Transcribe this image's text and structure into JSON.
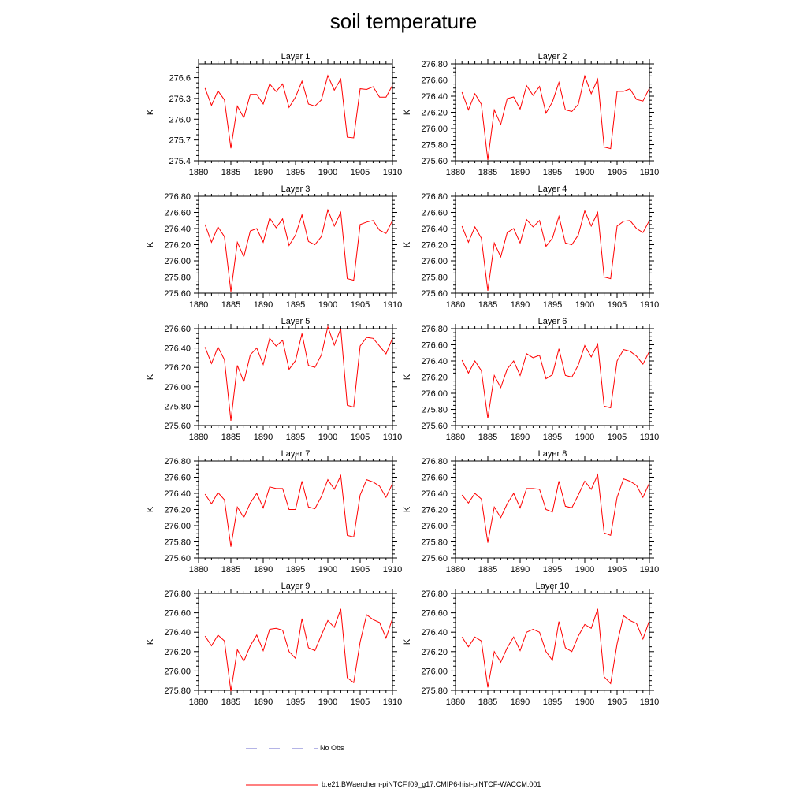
{
  "figure": {
    "title": "soil temperature"
  },
  "legend": {
    "items": [
      {
        "label": "No Obs",
        "color": "#6a6acd",
        "style": "dashed"
      },
      {
        "label": "b.e21.BWaerchem-piNTCF.f09_g17.CMIP6-hist-piNTCF-WACCM.001",
        "color": "#ff0000",
        "style": "solid"
      }
    ]
  },
  "chart_data": [
    {
      "type": "line",
      "title": "Layer 1",
      "ylabel": "K",
      "xlim": [
        1880,
        1910
      ],
      "ylim": [
        275.4,
        276.8
      ],
      "yticks": [
        275.4,
        275.7,
        276.0,
        276.3,
        276.6
      ],
      "ytick_labels": [
        "275.4",
        "275.7",
        "276.0",
        "276.3",
        "276.6"
      ],
      "xticks": [
        1880,
        1885,
        1890,
        1895,
        1900,
        1905,
        1910
      ],
      "series": [
        {
          "color": "#ff0000",
          "x": [
            1881,
            1882,
            1883,
            1884,
            1885,
            1886,
            1887,
            1888,
            1889,
            1890,
            1891,
            1892,
            1893,
            1894,
            1895,
            1896,
            1897,
            1898,
            1899,
            1900,
            1901,
            1902,
            1903,
            1904,
            1905,
            1906,
            1907,
            1908,
            1909,
            1910
          ],
          "values": [
            276.45,
            276.2,
            276.41,
            276.28,
            275.58,
            276.19,
            276.02,
            276.36,
            276.36,
            276.22,
            276.51,
            276.4,
            276.51,
            276.17,
            276.32,
            276.55,
            276.22,
            276.19,
            276.28,
            276.63,
            276.42,
            276.58,
            275.74,
            275.73,
            276.44,
            276.43,
            276.47,
            276.32,
            276.32,
            276.49
          ]
        }
      ]
    },
    {
      "type": "line",
      "title": "Layer 2",
      "ylabel": "K",
      "xlim": [
        1880,
        1910
      ],
      "ylim": [
        275.6,
        276.8
      ],
      "yticks": [
        275.6,
        275.8,
        276.0,
        276.2,
        276.4,
        276.6,
        276.8
      ],
      "ytick_labels": [
        "275.60",
        "275.80",
        "276.00",
        "276.20",
        "276.40",
        "276.60",
        "276.80"
      ],
      "xticks": [
        1880,
        1885,
        1890,
        1895,
        1900,
        1905,
        1910
      ],
      "series": [
        {
          "color": "#ff0000",
          "x": [
            1881,
            1882,
            1883,
            1884,
            1885,
            1886,
            1887,
            1888,
            1889,
            1890,
            1891,
            1892,
            1893,
            1894,
            1895,
            1896,
            1897,
            1898,
            1899,
            1900,
            1901,
            1902,
            1903,
            1904,
            1905,
            1906,
            1907,
            1908,
            1909,
            1910
          ],
          "values": [
            276.45,
            276.23,
            276.43,
            276.3,
            275.61,
            276.23,
            276.05,
            276.37,
            276.39,
            276.24,
            276.53,
            276.41,
            276.52,
            276.19,
            276.33,
            276.57,
            276.23,
            276.21,
            276.3,
            276.65,
            276.43,
            276.61,
            275.77,
            275.75,
            276.46,
            276.46,
            276.49,
            276.36,
            276.34,
            276.5
          ]
        }
      ]
    },
    {
      "type": "line",
      "title": "Layer 3",
      "ylabel": "K",
      "xlim": [
        1880,
        1910
      ],
      "ylim": [
        275.6,
        276.8
      ],
      "yticks": [
        275.6,
        275.8,
        276.0,
        276.2,
        276.4,
        276.6,
        276.8
      ],
      "ytick_labels": [
        "275.60",
        "275.80",
        "276.00",
        "276.20",
        "276.40",
        "276.60",
        "276.80"
      ],
      "xticks": [
        1880,
        1885,
        1890,
        1895,
        1900,
        1905,
        1910
      ],
      "series": [
        {
          "color": "#ff0000",
          "x": [
            1881,
            1882,
            1883,
            1884,
            1885,
            1886,
            1887,
            1888,
            1889,
            1890,
            1891,
            1892,
            1893,
            1894,
            1895,
            1896,
            1897,
            1898,
            1899,
            1900,
            1901,
            1902,
            1903,
            1904,
            1905,
            1906,
            1907,
            1908,
            1909,
            1910
          ],
          "values": [
            276.45,
            276.23,
            276.42,
            276.3,
            275.62,
            276.23,
            276.05,
            276.37,
            276.4,
            276.23,
            276.53,
            276.41,
            276.52,
            276.19,
            276.32,
            276.57,
            276.24,
            276.2,
            276.3,
            276.63,
            276.43,
            276.6,
            275.78,
            275.76,
            276.45,
            276.48,
            276.5,
            276.38,
            276.34,
            276.5
          ]
        }
      ]
    },
    {
      "type": "line",
      "title": "Layer 4",
      "ylabel": "K",
      "xlim": [
        1880,
        1910
      ],
      "ylim": [
        275.6,
        276.8
      ],
      "yticks": [
        275.6,
        275.8,
        276.0,
        276.2,
        276.4,
        276.6,
        276.8
      ],
      "ytick_labels": [
        "275.60",
        "275.80",
        "276.00",
        "276.20",
        "276.40",
        "276.60",
        "276.80"
      ],
      "xticks": [
        1880,
        1885,
        1890,
        1895,
        1900,
        1905,
        1910
      ],
      "series": [
        {
          "color": "#ff0000",
          "x": [
            1881,
            1882,
            1883,
            1884,
            1885,
            1886,
            1887,
            1888,
            1889,
            1890,
            1891,
            1892,
            1893,
            1894,
            1895,
            1896,
            1897,
            1898,
            1899,
            1900,
            1901,
            1902,
            1903,
            1904,
            1905,
            1906,
            1907,
            1908,
            1909,
            1910
          ],
          "values": [
            276.43,
            276.23,
            276.42,
            276.28,
            275.63,
            276.22,
            276.05,
            276.35,
            276.4,
            276.22,
            276.51,
            276.42,
            276.5,
            276.18,
            276.28,
            276.55,
            276.22,
            276.2,
            276.32,
            276.62,
            276.43,
            276.6,
            275.8,
            275.78,
            276.43,
            276.49,
            276.5,
            276.4,
            276.35,
            276.5
          ]
        }
      ]
    },
    {
      "type": "line",
      "title": "Layer 5",
      "ylabel": "K",
      "xlim": [
        1880,
        1910
      ],
      "ylim": [
        275.6,
        276.6
      ],
      "yticks": [
        275.6,
        275.8,
        276.0,
        276.2,
        276.4,
        276.6
      ],
      "ytick_labels": [
        "275.60",
        "275.80",
        "276.00",
        "276.20",
        "276.40",
        "276.60"
      ],
      "xticks": [
        1880,
        1885,
        1890,
        1895,
        1900,
        1905,
        1910
      ],
      "series": [
        {
          "color": "#ff0000",
          "x": [
            1881,
            1882,
            1883,
            1884,
            1885,
            1886,
            1887,
            1888,
            1889,
            1890,
            1891,
            1892,
            1893,
            1894,
            1895,
            1896,
            1897,
            1898,
            1899,
            1900,
            1901,
            1902,
            1903,
            1904,
            1905,
            1906,
            1907,
            1908,
            1909,
            1910
          ],
          "values": [
            276.41,
            276.24,
            276.41,
            276.28,
            275.65,
            276.22,
            276.05,
            276.33,
            276.4,
            276.23,
            276.5,
            276.42,
            276.48,
            276.18,
            276.27,
            276.55,
            276.22,
            276.2,
            276.33,
            276.62,
            276.43,
            276.6,
            275.81,
            275.79,
            276.42,
            276.51,
            276.5,
            276.42,
            276.34,
            276.5
          ]
        }
      ]
    },
    {
      "type": "line",
      "title": "Layer 6",
      "ylabel": "K",
      "xlim": [
        1880,
        1910
      ],
      "ylim": [
        275.6,
        276.8
      ],
      "yticks": [
        275.6,
        275.8,
        276.0,
        276.2,
        276.4,
        276.6,
        276.8
      ],
      "ytick_labels": [
        "275.60",
        "275.80",
        "276.00",
        "276.20",
        "276.40",
        "276.60",
        "276.80"
      ],
      "xticks": [
        1880,
        1885,
        1890,
        1895,
        1900,
        1905,
        1910
      ],
      "series": [
        {
          "color": "#ff0000",
          "x": [
            1881,
            1882,
            1883,
            1884,
            1885,
            1886,
            1887,
            1888,
            1889,
            1890,
            1891,
            1892,
            1893,
            1894,
            1895,
            1896,
            1897,
            1898,
            1899,
            1900,
            1901,
            1902,
            1903,
            1904,
            1905,
            1906,
            1907,
            1908,
            1909,
            1910
          ],
          "values": [
            276.41,
            276.25,
            276.4,
            276.28,
            275.69,
            276.22,
            276.07,
            276.3,
            276.4,
            276.22,
            276.49,
            276.44,
            276.47,
            276.18,
            276.23,
            276.55,
            276.22,
            276.2,
            276.35,
            276.59,
            276.45,
            276.61,
            275.84,
            275.82,
            276.4,
            276.54,
            276.52,
            276.46,
            276.36,
            276.52
          ]
        }
      ]
    },
    {
      "type": "line",
      "title": "Layer 7",
      "ylabel": "K",
      "xlim": [
        1880,
        1910
      ],
      "ylim": [
        275.6,
        276.8
      ],
      "yticks": [
        275.6,
        275.8,
        276.0,
        276.2,
        276.4,
        276.6,
        276.8
      ],
      "ytick_labels": [
        "275.60",
        "275.80",
        "276.00",
        "276.20",
        "276.40",
        "276.60",
        "276.80"
      ],
      "xticks": [
        1880,
        1885,
        1890,
        1895,
        1900,
        1905,
        1910
      ],
      "series": [
        {
          "color": "#ff0000",
          "x": [
            1881,
            1882,
            1883,
            1884,
            1885,
            1886,
            1887,
            1888,
            1889,
            1890,
            1891,
            1892,
            1893,
            1894,
            1895,
            1896,
            1897,
            1898,
            1899,
            1900,
            1901,
            1902,
            1903,
            1904,
            1905,
            1906,
            1907,
            1908,
            1909,
            1910
          ],
          "values": [
            276.39,
            276.27,
            276.41,
            276.32,
            275.74,
            276.23,
            276.1,
            276.28,
            276.4,
            276.22,
            276.48,
            276.46,
            276.46,
            276.2,
            276.2,
            276.55,
            276.23,
            276.21,
            276.36,
            276.57,
            276.45,
            276.62,
            275.88,
            275.86,
            276.38,
            276.57,
            276.54,
            276.49,
            276.35,
            276.52
          ]
        }
      ]
    },
    {
      "type": "line",
      "title": "Layer 8",
      "ylabel": "K",
      "xlim": [
        1880,
        1910
      ],
      "ylim": [
        275.6,
        276.8
      ],
      "yticks": [
        275.6,
        275.8,
        276.0,
        276.2,
        276.4,
        276.6,
        276.8
      ],
      "ytick_labels": [
        "275.60",
        "275.80",
        "276.00",
        "276.20",
        "276.40",
        "276.60",
        "276.80"
      ],
      "xticks": [
        1880,
        1885,
        1890,
        1895,
        1900,
        1905,
        1910
      ],
      "series": [
        {
          "color": "#ff0000",
          "x": [
            1881,
            1882,
            1883,
            1884,
            1885,
            1886,
            1887,
            1888,
            1889,
            1890,
            1891,
            1892,
            1893,
            1894,
            1895,
            1896,
            1897,
            1898,
            1899,
            1900,
            1901,
            1902,
            1903,
            1904,
            1905,
            1906,
            1907,
            1908,
            1909,
            1910
          ],
          "values": [
            276.38,
            276.28,
            276.4,
            276.33,
            275.79,
            276.23,
            276.1,
            276.27,
            276.4,
            276.22,
            276.46,
            276.46,
            276.45,
            276.2,
            276.17,
            276.55,
            276.24,
            276.22,
            276.38,
            276.55,
            276.45,
            276.63,
            275.91,
            275.88,
            276.35,
            276.58,
            276.55,
            276.5,
            276.35,
            276.53
          ]
        }
      ]
    },
    {
      "type": "line",
      "title": "Layer 9",
      "ylabel": "K",
      "xlim": [
        1880,
        1910
      ],
      "ylim": [
        275.8,
        276.8
      ],
      "yticks": [
        275.8,
        276.0,
        276.2,
        276.4,
        276.6,
        276.8
      ],
      "ytick_labels": [
        "275.80",
        "276.00",
        "276.20",
        "276.40",
        "276.60",
        "276.80"
      ],
      "xticks": [
        1880,
        1885,
        1890,
        1895,
        1900,
        1905,
        1910
      ],
      "series": [
        {
          "color": "#ff0000",
          "x": [
            1881,
            1882,
            1883,
            1884,
            1885,
            1886,
            1887,
            1888,
            1889,
            1890,
            1891,
            1892,
            1893,
            1894,
            1895,
            1896,
            1897,
            1898,
            1899,
            1900,
            1901,
            1902,
            1903,
            1904,
            1905,
            1906,
            1907,
            1908,
            1909,
            1910
          ],
          "values": [
            276.36,
            276.26,
            276.37,
            276.31,
            275.79,
            276.22,
            276.1,
            276.26,
            276.37,
            276.21,
            276.43,
            276.44,
            276.42,
            276.2,
            276.13,
            276.54,
            276.24,
            276.21,
            276.37,
            276.52,
            276.45,
            276.64,
            275.93,
            275.88,
            276.3,
            276.58,
            276.53,
            276.5,
            276.34,
            276.54
          ]
        }
      ]
    },
    {
      "type": "line",
      "title": "Layer 10",
      "ylabel": "K",
      "xlim": [
        1880,
        1910
      ],
      "ylim": [
        275.8,
        276.8
      ],
      "yticks": [
        275.8,
        276.0,
        276.2,
        276.4,
        276.6,
        276.8
      ],
      "ytick_labels": [
        "275.80",
        "276.00",
        "276.20",
        "276.40",
        "276.60",
        "276.80"
      ],
      "xticks": [
        1880,
        1885,
        1890,
        1895,
        1900,
        1905,
        1910
      ],
      "series": [
        {
          "color": "#ff0000",
          "x": [
            1881,
            1882,
            1883,
            1884,
            1885,
            1886,
            1887,
            1888,
            1889,
            1890,
            1891,
            1892,
            1893,
            1894,
            1895,
            1896,
            1897,
            1898,
            1899,
            1900,
            1901,
            1902,
            1903,
            1904,
            1905,
            1906,
            1907,
            1908,
            1909,
            1910
          ],
          "values": [
            276.35,
            276.25,
            276.35,
            276.31,
            275.83,
            276.2,
            276.09,
            276.24,
            276.35,
            276.21,
            276.4,
            276.43,
            276.4,
            276.2,
            276.11,
            276.51,
            276.24,
            276.2,
            276.36,
            276.48,
            276.44,
            276.64,
            275.94,
            275.87,
            276.28,
            276.57,
            276.52,
            276.49,
            276.33,
            276.52
          ]
        }
      ]
    }
  ]
}
